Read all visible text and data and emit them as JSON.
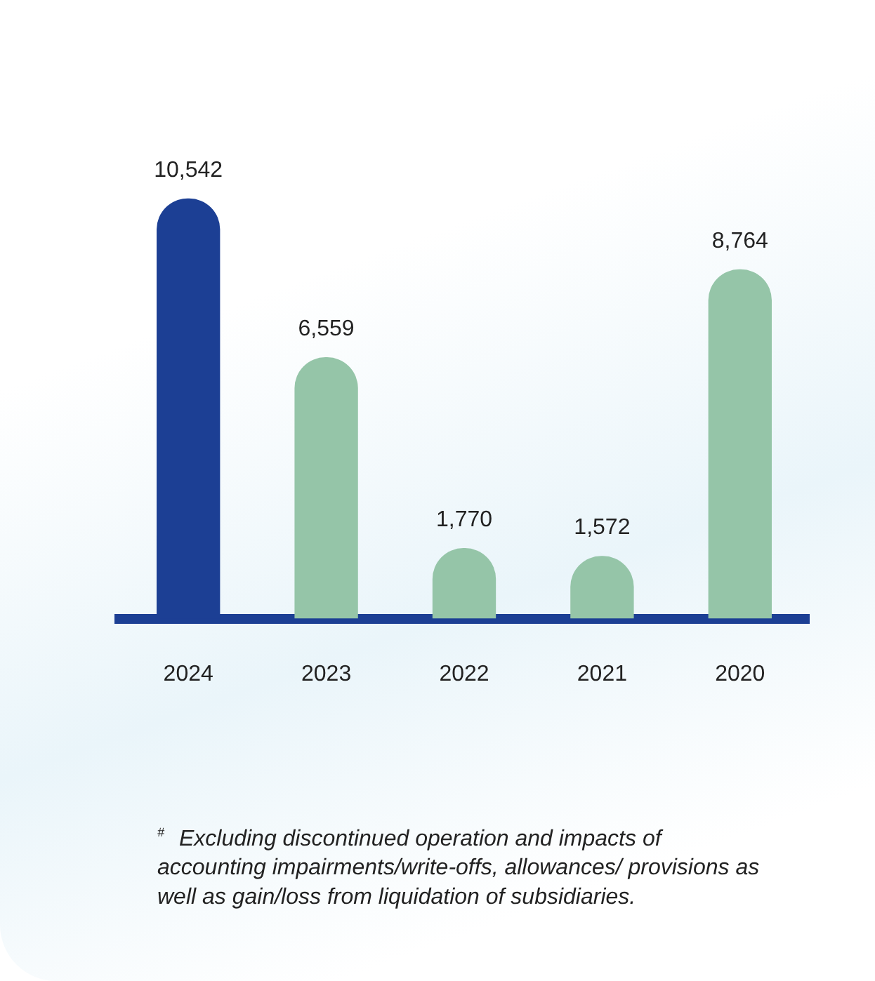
{
  "chart_data": {
    "type": "bar",
    "categories": [
      "2024",
      "2023",
      "2022",
      "2021",
      "2020"
    ],
    "values": [
      10542,
      6559,
      1770,
      1572,
      8764
    ],
    "colors": [
      "#1c3f94",
      "#95c5a8",
      "#95c5a8",
      "#95c5a8",
      "#95c5a8"
    ],
    "value_labels": [
      "10,542",
      "6,559",
      "1,770",
      "1,572",
      "8,764"
    ],
    "grid": false,
    "legend": false,
    "tick_labels": "x",
    "annotations": [
      "$^{#}$ Excluding discontinued operation and impacts of accounting impairments/write-offs, allowances/ provisions as well as gain/loss from liquidation of subsidiaries."
    ]
  }
}
